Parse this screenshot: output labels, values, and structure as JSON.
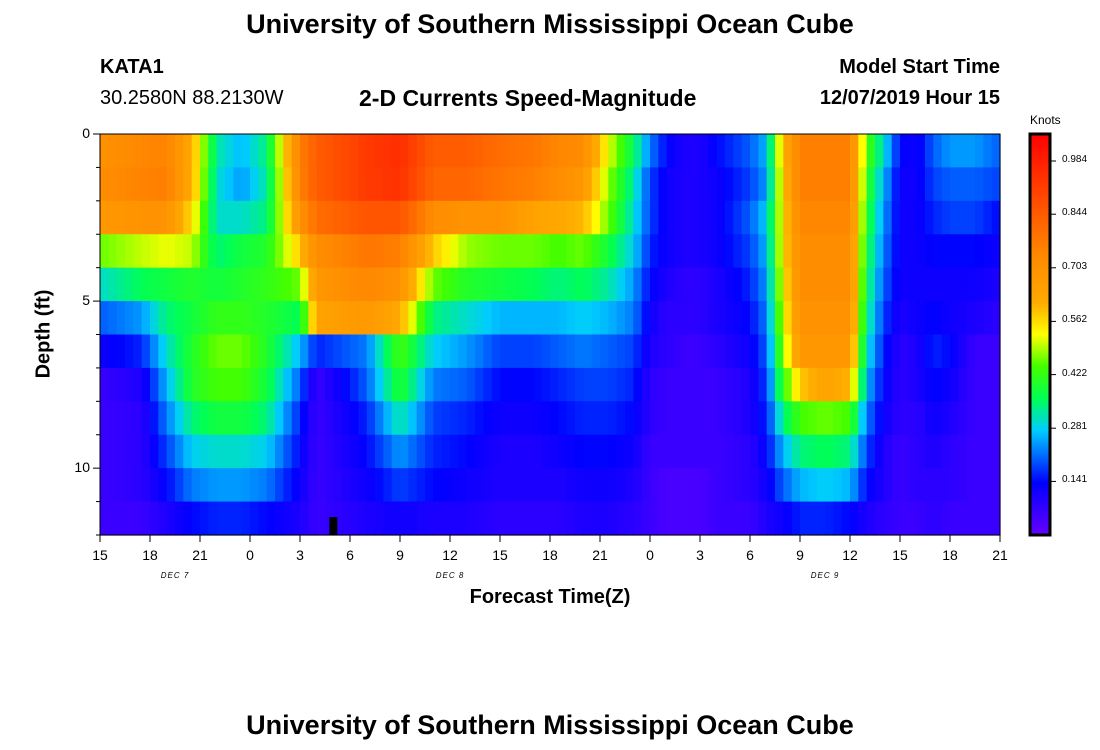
{
  "header": {
    "title": "University of Southern Mississippi Ocean Cube",
    "station_id": "KATA1",
    "station_coords": "30.2580N 88.2130W",
    "subtitle": "2-D Currents Speed-Magnitude",
    "model_start_label": "Model Start Time",
    "model_start_value": "12/07/2019 Hour 15"
  },
  "footer": {
    "title": "University of Southern Mississippi Ocean Cube"
  },
  "chart_data": {
    "type": "heatmap",
    "title": "2-D Currents Speed-Magnitude",
    "xlabel": "Forecast Time(Z)",
    "ylabel": "Depth (ft)",
    "x_range_hours": [
      0,
      54
    ],
    "x_tick_labels": [
      "15",
      "18",
      "21",
      "0",
      "3",
      "6",
      "9",
      "12",
      "15",
      "18",
      "21",
      "0",
      "3",
      "6",
      "9",
      "12",
      "15",
      "18",
      "21"
    ],
    "x_ticks_hours": [
      0,
      3,
      6,
      9,
      12,
      15,
      18,
      21,
      24,
      27,
      30,
      33,
      36,
      39,
      42,
      45,
      48,
      51,
      54
    ],
    "date_labels": [
      {
        "text": "DEC  7",
        "hour": 4.5
      },
      {
        "text": "DEC  8",
        "hour": 21
      },
      {
        "text": "DEC  9",
        "hour": 43.5
      }
    ],
    "y_range_ft": [
      0,
      12
    ],
    "y_tick_labels": [
      "0",
      "5",
      "10"
    ],
    "y_ticks_ft": [
      0,
      5,
      10
    ],
    "colorbar": {
      "unit": "Knots",
      "min": 0.0,
      "max": 1.055,
      "tick_labels": [
        "0.984",
        "0.844",
        "0.703",
        "0.562",
        "0.422",
        "0.281",
        "0.141"
      ],
      "tick_values": [
        0.984,
        0.844,
        0.703,
        0.562,
        0.422,
        0.281,
        0.141
      ]
    },
    "depth_layers_ft": [
      0.5,
      1.5,
      2.5,
      3.5,
      4.5,
      5.5,
      6.5,
      7.5,
      8.5,
      9.5,
      10.5,
      11.5
    ],
    "time_keys_hours": [
      0,
      2.5,
      4,
      5.5,
      7,
      8.5,
      10,
      12,
      13,
      16,
      18,
      20,
      22,
      24,
      26,
      27.5,
      29,
      30.5,
      32,
      33,
      34,
      35,
      36,
      37,
      39,
      40,
      41,
      42,
      43.5,
      45,
      46,
      47,
      48,
      49,
      50,
      51,
      52.5,
      54
    ],
    "speed_knots": [
      [
        0.7,
        0.74,
        0.75,
        0.62,
        0.32,
        0.26,
        0.34,
        0.76,
        0.84,
        0.92,
        0.95,
        0.84,
        0.84,
        0.8,
        0.78,
        0.74,
        0.72,
        0.52,
        0.36,
        0.22,
        0.14,
        0.1,
        0.1,
        0.14,
        0.2,
        0.26,
        0.6,
        0.76,
        0.76,
        0.76,
        0.45,
        0.3,
        0.14,
        0.12,
        0.2,
        0.24,
        0.24,
        0.2
      ],
      [
        0.72,
        0.75,
        0.76,
        0.62,
        0.3,
        0.24,
        0.32,
        0.75,
        0.84,
        0.92,
        0.94,
        0.82,
        0.82,
        0.78,
        0.76,
        0.72,
        0.68,
        0.48,
        0.32,
        0.18,
        0.12,
        0.1,
        0.1,
        0.12,
        0.18,
        0.24,
        0.58,
        0.76,
        0.76,
        0.76,
        0.42,
        0.26,
        0.12,
        0.12,
        0.18,
        0.2,
        0.2,
        0.18
      ],
      [
        0.68,
        0.7,
        0.7,
        0.56,
        0.3,
        0.3,
        0.34,
        0.7,
        0.8,
        0.86,
        0.86,
        0.72,
        0.7,
        0.7,
        0.64,
        0.62,
        0.6,
        0.46,
        0.3,
        0.18,
        0.12,
        0.1,
        0.1,
        0.12,
        0.2,
        0.28,
        0.56,
        0.74,
        0.74,
        0.74,
        0.4,
        0.24,
        0.12,
        0.12,
        0.16,
        0.18,
        0.18,
        0.14
      ],
      [
        0.46,
        0.5,
        0.52,
        0.5,
        0.34,
        0.38,
        0.4,
        0.58,
        0.72,
        0.78,
        0.76,
        0.58,
        0.48,
        0.46,
        0.46,
        0.44,
        0.46,
        0.38,
        0.28,
        0.16,
        0.12,
        0.1,
        0.1,
        0.12,
        0.18,
        0.26,
        0.56,
        0.72,
        0.72,
        0.72,
        0.38,
        0.22,
        0.12,
        0.12,
        0.14,
        0.14,
        0.14,
        0.12
      ],
      [
        0.3,
        0.36,
        0.38,
        0.4,
        0.38,
        0.4,
        0.42,
        0.46,
        0.68,
        0.74,
        0.7,
        0.46,
        0.4,
        0.38,
        0.36,
        0.34,
        0.36,
        0.32,
        0.24,
        0.14,
        0.1,
        0.08,
        0.08,
        0.1,
        0.16,
        0.24,
        0.54,
        0.72,
        0.72,
        0.72,
        0.36,
        0.2,
        0.12,
        0.12,
        0.12,
        0.12,
        0.12,
        0.1
      ],
      [
        0.2,
        0.24,
        0.34,
        0.38,
        0.42,
        0.42,
        0.4,
        0.36,
        0.64,
        0.68,
        0.62,
        0.34,
        0.3,
        0.26,
        0.26,
        0.26,
        0.28,
        0.26,
        0.22,
        0.12,
        0.08,
        0.08,
        0.08,
        0.1,
        0.14,
        0.22,
        0.52,
        0.7,
        0.7,
        0.7,
        0.34,
        0.18,
        0.1,
        0.12,
        0.14,
        0.12,
        0.1,
        0.08
      ],
      [
        0.12,
        0.16,
        0.3,
        0.4,
        0.46,
        0.46,
        0.4,
        0.26,
        0.16,
        0.22,
        0.44,
        0.28,
        0.24,
        0.18,
        0.18,
        0.2,
        0.22,
        0.2,
        0.18,
        0.1,
        0.08,
        0.06,
        0.06,
        0.08,
        0.12,
        0.2,
        0.48,
        0.68,
        0.68,
        0.68,
        0.3,
        0.16,
        0.08,
        0.1,
        0.16,
        0.14,
        0.06,
        0.06
      ],
      [
        0.06,
        0.1,
        0.26,
        0.4,
        0.44,
        0.44,
        0.38,
        0.2,
        0.06,
        0.2,
        0.4,
        0.22,
        0.2,
        0.14,
        0.14,
        0.16,
        0.18,
        0.18,
        0.16,
        0.08,
        0.06,
        0.06,
        0.06,
        0.06,
        0.1,
        0.18,
        0.42,
        0.58,
        0.64,
        0.6,
        0.26,
        0.14,
        0.08,
        0.1,
        0.14,
        0.12,
        0.06,
        0.06
      ],
      [
        0.06,
        0.08,
        0.22,
        0.34,
        0.38,
        0.38,
        0.34,
        0.16,
        0.06,
        0.16,
        0.32,
        0.18,
        0.16,
        0.12,
        0.12,
        0.14,
        0.16,
        0.16,
        0.14,
        0.08,
        0.06,
        0.06,
        0.06,
        0.06,
        0.1,
        0.16,
        0.34,
        0.44,
        0.46,
        0.44,
        0.22,
        0.12,
        0.08,
        0.08,
        0.12,
        0.1,
        0.06,
        0.06
      ],
      [
        0.06,
        0.08,
        0.18,
        0.28,
        0.3,
        0.3,
        0.28,
        0.14,
        0.06,
        0.14,
        0.24,
        0.16,
        0.14,
        0.1,
        0.1,
        0.12,
        0.14,
        0.14,
        0.12,
        0.06,
        0.06,
        0.06,
        0.06,
        0.06,
        0.08,
        0.14,
        0.26,
        0.34,
        0.36,
        0.34,
        0.18,
        0.1,
        0.06,
        0.08,
        0.1,
        0.08,
        0.06,
        0.06
      ],
      [
        0.06,
        0.08,
        0.14,
        0.22,
        0.24,
        0.24,
        0.22,
        0.12,
        0.06,
        0.12,
        0.18,
        0.14,
        0.12,
        0.1,
        0.1,
        0.1,
        0.12,
        0.12,
        0.1,
        0.06,
        0.04,
        0.04,
        0.04,
        0.06,
        0.08,
        0.12,
        0.2,
        0.26,
        0.28,
        0.26,
        0.14,
        0.1,
        0.06,
        0.08,
        0.08,
        0.08,
        0.06,
        0.06
      ],
      [
        0.06,
        0.06,
        0.1,
        0.14,
        0.16,
        0.16,
        0.14,
        0.1,
        0.06,
        0.1,
        0.12,
        0.1,
        0.1,
        0.08,
        0.08,
        0.08,
        0.1,
        0.1,
        0.08,
        0.06,
        0.04,
        0.04,
        0.04,
        0.06,
        0.06,
        0.1,
        0.12,
        0.16,
        0.16,
        0.14,
        0.1,
        0.08,
        0.06,
        0.06,
        0.08,
        0.06,
        0.06,
        0.06
      ]
    ],
    "current_time_marker_hour": 14
  }
}
